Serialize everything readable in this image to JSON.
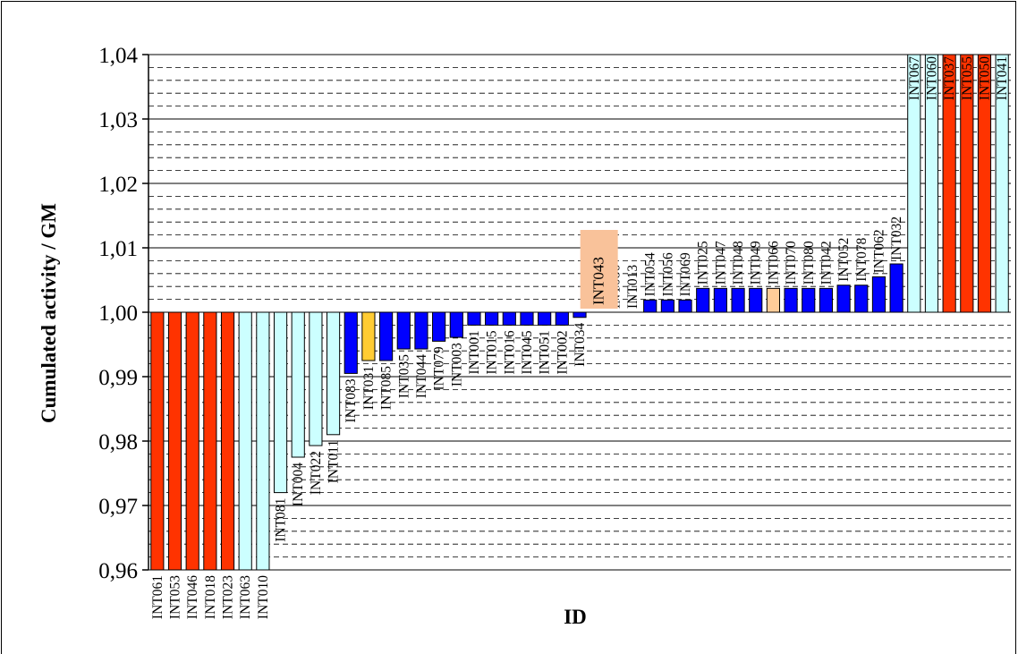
{
  "chart_data": {
    "type": "bar",
    "ylabel": "Cumulated activity / GM",
    "xlabel": "ID",
    "ylim": [
      0.96,
      1.04
    ],
    "yticks": [
      "0,96",
      "0,97",
      "0,98",
      "0,99",
      "1,00",
      "1,01",
      "1,02",
      "1,03",
      "1,04"
    ],
    "baseline": 1.0,
    "grid": "major solid, minor dashed",
    "colors": {
      "red": "#ff3300",
      "cyan": "#ccffff",
      "blue": "#0000ff",
      "yellow": "#ffcc33",
      "peach": "#ffcc99"
    },
    "highlight": {
      "label": "INT043",
      "color": "#f9c29a"
    },
    "bars": [
      {
        "label": "INT061",
        "value": 0.96,
        "color": "red"
      },
      {
        "label": "INT053",
        "value": 0.96,
        "color": "red"
      },
      {
        "label": "INT046",
        "value": 0.96,
        "color": "red"
      },
      {
        "label": "INT018",
        "value": 0.96,
        "color": "red"
      },
      {
        "label": "INT023",
        "value": 0.96,
        "color": "red"
      },
      {
        "label": "INT063",
        "value": 0.96,
        "color": "cyan"
      },
      {
        "label": "INT010",
        "value": 0.96,
        "color": "cyan"
      },
      {
        "label": "INT081",
        "value": 0.972,
        "color": "cyan"
      },
      {
        "label": "INT004",
        "value": 0.9775,
        "color": "cyan"
      },
      {
        "label": "INT022",
        "value": 0.9793,
        "color": "cyan"
      },
      {
        "label": "INT011",
        "value": 0.981,
        "color": "cyan"
      },
      {
        "label": "INT083",
        "value": 0.9905,
        "color": "blue"
      },
      {
        "label": "INT031",
        "value": 0.9925,
        "color": "yellow"
      },
      {
        "label": "INT085",
        "value": 0.9925,
        "color": "blue"
      },
      {
        "label": "INT035",
        "value": 0.9943,
        "color": "blue"
      },
      {
        "label": "INT044",
        "value": 0.9943,
        "color": "blue"
      },
      {
        "label": "INT079",
        "value": 0.9955,
        "color": "blue"
      },
      {
        "label": "INT003",
        "value": 0.9961,
        "color": "blue"
      },
      {
        "label": "INT001",
        "value": 0.998,
        "color": "blue"
      },
      {
        "label": "INT015",
        "value": 0.998,
        "color": "blue"
      },
      {
        "label": "INT016",
        "value": 0.998,
        "color": "blue"
      },
      {
        "label": "INT045",
        "value": 0.998,
        "color": "blue"
      },
      {
        "label": "INT051",
        "value": 0.998,
        "color": "blue"
      },
      {
        "label": "INT002",
        "value": 0.998,
        "color": "blue"
      },
      {
        "label": "INT034",
        "value": 0.9992,
        "color": "blue"
      },
      {
        "label": "INT043",
        "value": 1.0,
        "color": "blue"
      },
      {
        "label": "INT086",
        "value": 1.0,
        "color": "blue"
      },
      {
        "label": "INT013",
        "value": 1.0,
        "color": "blue"
      },
      {
        "label": "INT054",
        "value": 1.0019,
        "color": "blue"
      },
      {
        "label": "INT056",
        "value": 1.0019,
        "color": "blue"
      },
      {
        "label": "INT069",
        "value": 1.0019,
        "color": "blue"
      },
      {
        "label": "INT025",
        "value": 1.0037,
        "color": "blue"
      },
      {
        "label": "INT047",
        "value": 1.0037,
        "color": "blue"
      },
      {
        "label": "INT048",
        "value": 1.0037,
        "color": "blue"
      },
      {
        "label": "INT049",
        "value": 1.0037,
        "color": "blue"
      },
      {
        "label": "INT066",
        "value": 1.0037,
        "color": "peach"
      },
      {
        "label": "INT070",
        "value": 1.0037,
        "color": "blue"
      },
      {
        "label": "INT080",
        "value": 1.0037,
        "color": "blue"
      },
      {
        "label": "INT042",
        "value": 1.0037,
        "color": "blue"
      },
      {
        "label": "INT052",
        "value": 1.0042,
        "color": "blue"
      },
      {
        "label": "INT078",
        "value": 1.0042,
        "color": "blue"
      },
      {
        "label": "INT062",
        "value": 1.0055,
        "color": "blue"
      },
      {
        "label": "INT032",
        "value": 1.0075,
        "color": "blue"
      },
      {
        "label": "INT067",
        "value": 1.04,
        "color": "cyan"
      },
      {
        "label": "INT060",
        "value": 1.04,
        "color": "cyan"
      },
      {
        "label": "INT037",
        "value": 1.04,
        "color": "red"
      },
      {
        "label": "INT055",
        "value": 1.04,
        "color": "red"
      },
      {
        "label": "INT050",
        "value": 1.04,
        "color": "red"
      },
      {
        "label": "INT041",
        "value": 1.04,
        "color": "cyan"
      }
    ]
  }
}
